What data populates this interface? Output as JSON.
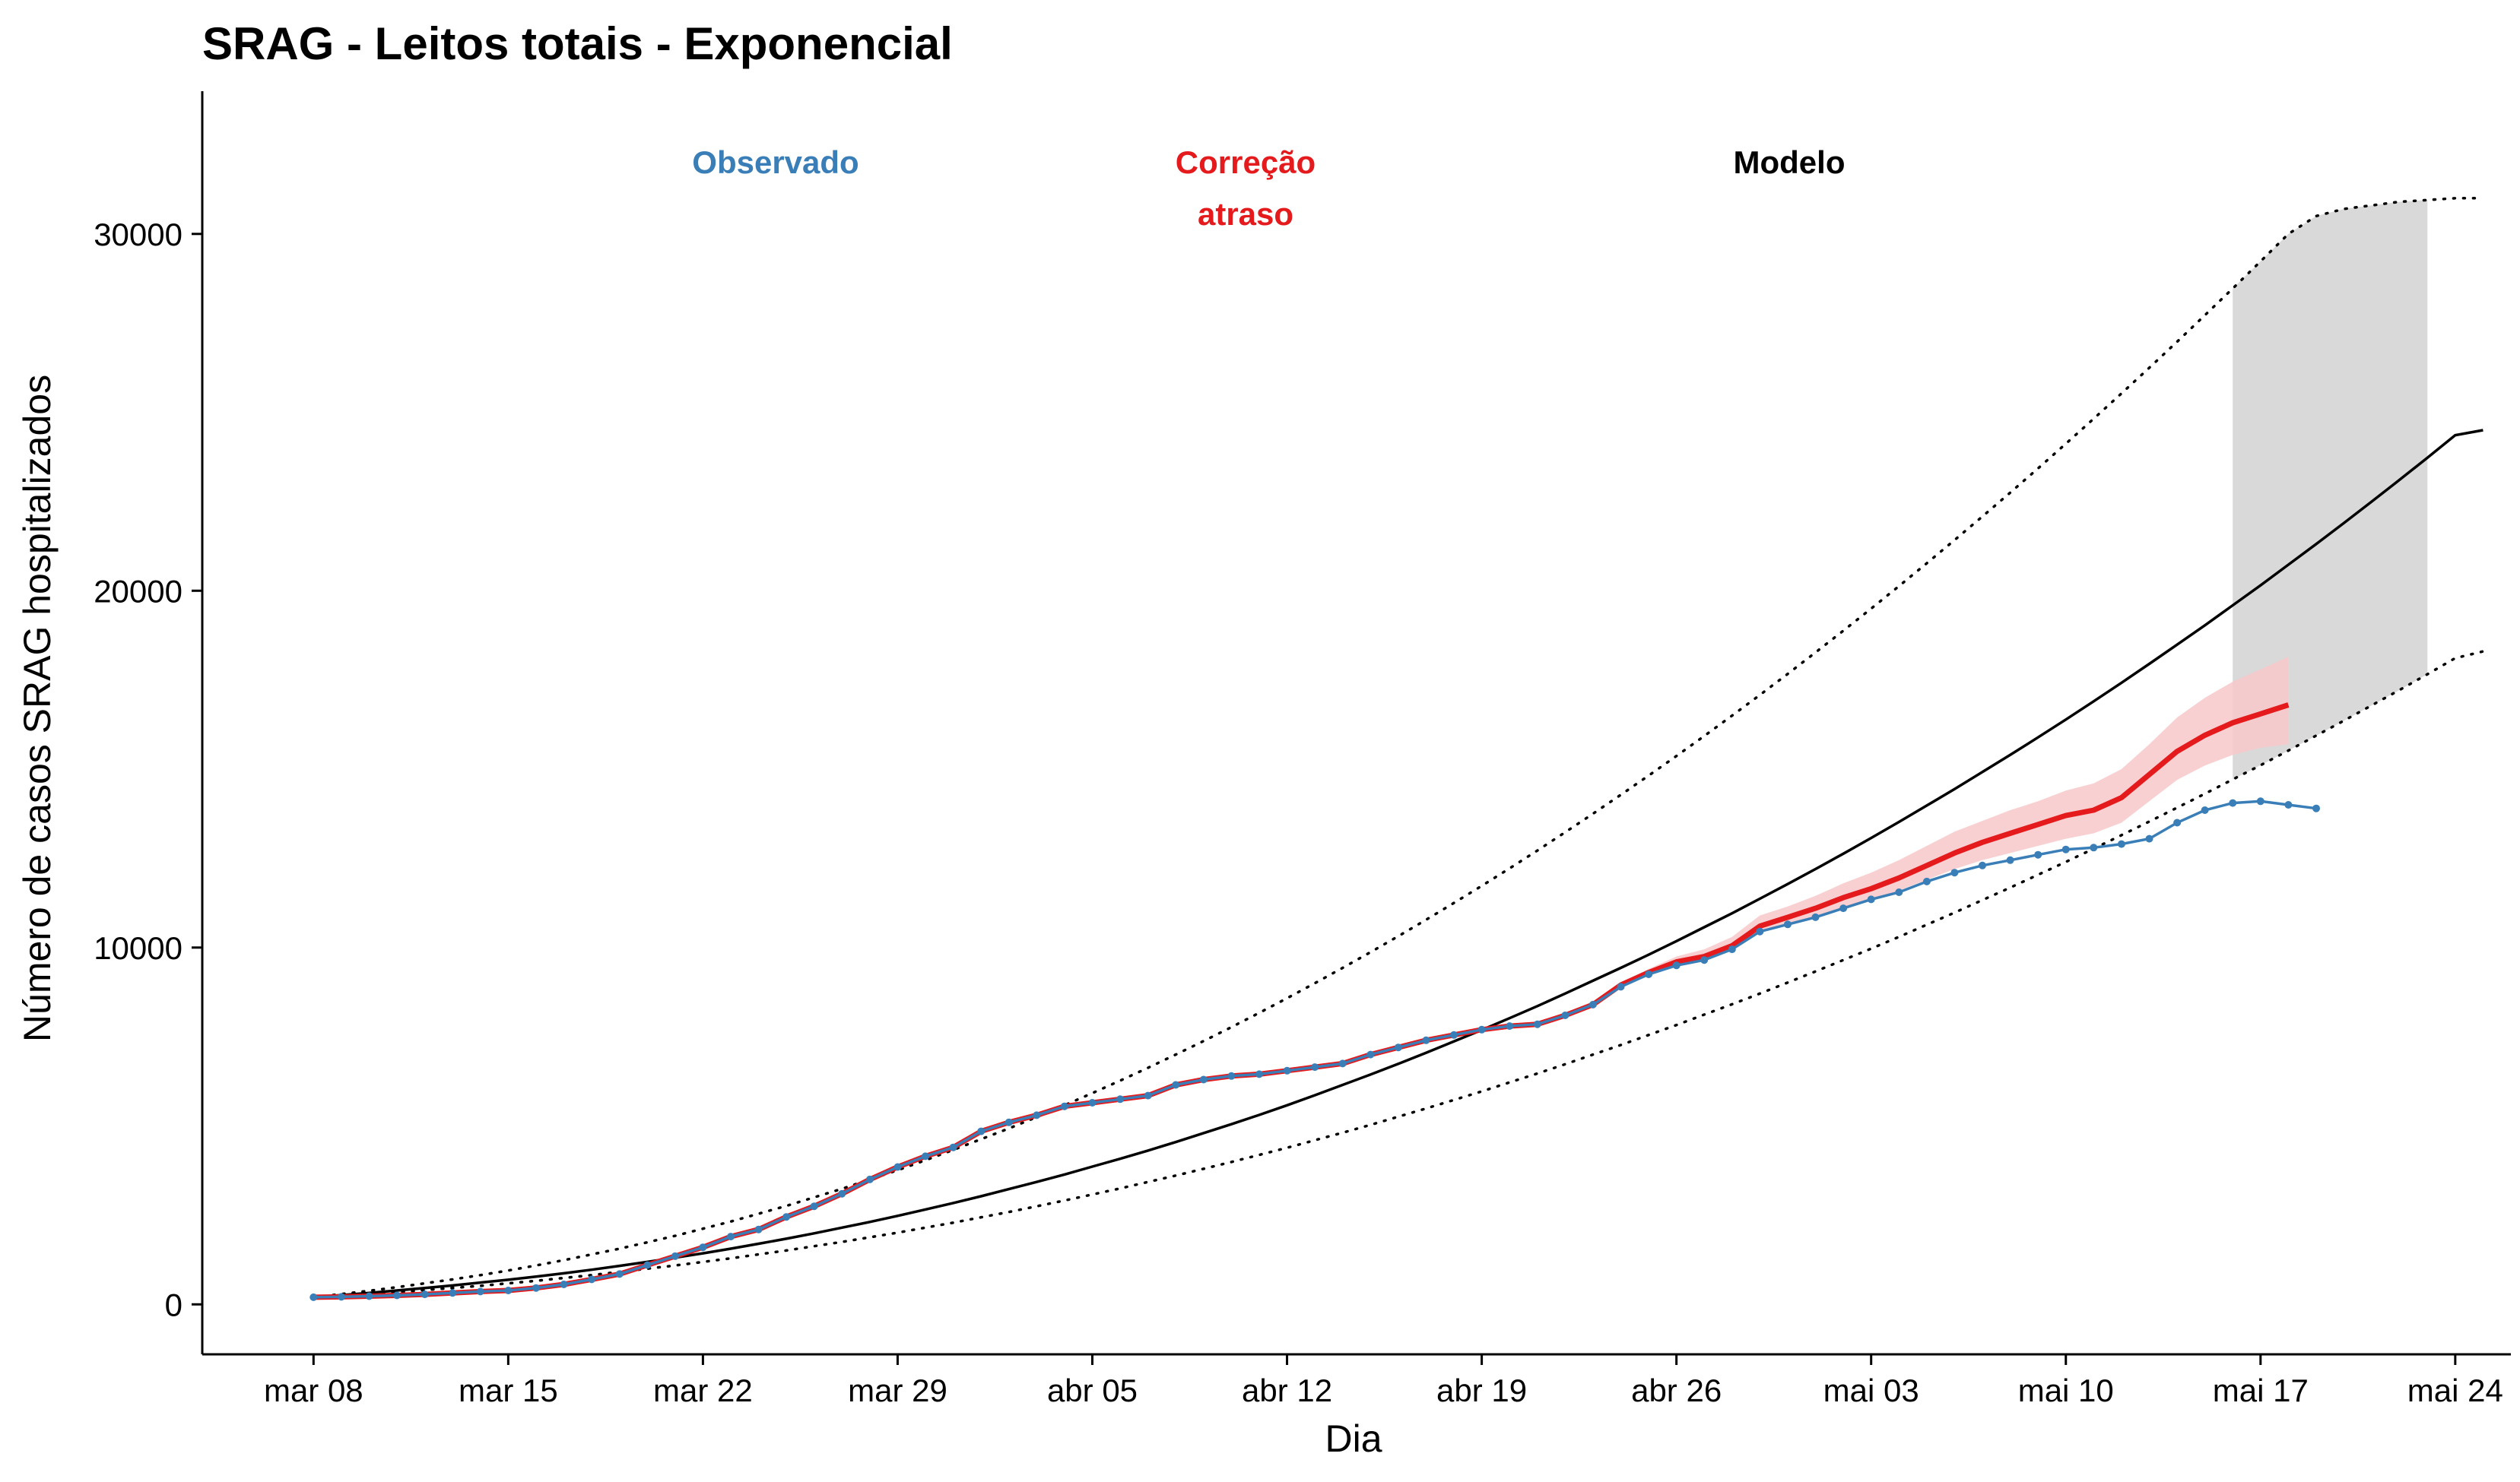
{
  "chart_data": {
    "type": "line",
    "title": "SRAG - Leitos totais - Exponencial",
    "xlabel": "Dia",
    "ylabel": "Número de casos SRAG hospitalizados",
    "x_range": [
      "2020-03-04",
      "2020-05-26"
    ],
    "ylim": [
      -1400,
      34000
    ],
    "x_ticks": [
      {
        "date": "2020-03-08",
        "label": "mar 08"
      },
      {
        "date": "2020-03-15",
        "label": "mar 15"
      },
      {
        "date": "2020-03-22",
        "label": "mar 22"
      },
      {
        "date": "2020-03-29",
        "label": "mar 29"
      },
      {
        "date": "2020-04-05",
        "label": "abr 05"
      },
      {
        "date": "2020-04-12",
        "label": "abr 12"
      },
      {
        "date": "2020-04-19",
        "label": "abr 19"
      },
      {
        "date": "2020-04-26",
        "label": "abr 26"
      },
      {
        "date": "2020-05-03",
        "label": "mai 03"
      },
      {
        "date": "2020-05-10",
        "label": "mai 10"
      },
      {
        "date": "2020-05-17",
        "label": "mai 17"
      },
      {
        "date": "2020-05-24",
        "label": "mai 24"
      }
    ],
    "y_ticks": [
      0,
      10000,
      20000,
      30000
    ],
    "grid": false,
    "legend": {
      "placement": "top",
      "entries": [
        {
          "key": "observado",
          "lines": [
            "Observado"
          ],
          "color": "#3A7EB8"
        },
        {
          "key": "correcao",
          "lines": [
            "Correção",
            "atraso"
          ],
          "color": "#E41A1C"
        },
        {
          "key": "modelo",
          "lines": [
            "Modelo"
          ],
          "color": "#000000"
        }
      ]
    },
    "colors": {
      "observado": "#3A7EB8",
      "correcao": "#E41A1C",
      "correcao_band": "#F8C8C9",
      "modelo": "#000000",
      "projection_band": "#D9D9D9"
    },
    "series": [
      {
        "name": "Observado",
        "start": "2020-03-08",
        "y": [
          200,
          210,
          230,
          250,
          280,
          320,
          360,
          390,
          460,
          560,
          700,
          850,
          1100,
          1350,
          1600,
          1900,
          2100,
          2450,
          2750,
          3100,
          3500,
          3850,
          4150,
          4400,
          4850,
          5100,
          5300,
          5550,
          5650,
          5750,
          5850,
          6150,
          6300,
          6400,
          6450,
          6550,
          6650,
          6750,
          7000,
          7200,
          7400,
          7550,
          7700,
          7800,
          7850,
          8100,
          8400,
          8900,
          9250,
          9500,
          9650,
          9950,
          10450,
          10650,
          10850,
          11100,
          11350,
          11550,
          11850,
          12100,
          12300,
          12450,
          12600,
          12750,
          12800,
          12900,
          13050,
          13500,
          13850,
          14050,
          14100,
          14000,
          13900
        ]
      },
      {
        "name": "Correção atraso",
        "start": "2020-03-08",
        "y": [
          200,
          210,
          230,
          250,
          280,
          320,
          360,
          390,
          460,
          560,
          700,
          850,
          1100,
          1350,
          1600,
          1900,
          2100,
          2450,
          2750,
          3100,
          3500,
          3850,
          4150,
          4400,
          4850,
          5100,
          5300,
          5550,
          5650,
          5750,
          5850,
          6150,
          6300,
          6400,
          6450,
          6550,
          6650,
          6750,
          7000,
          7200,
          7400,
          7550,
          7700,
          7800,
          7850,
          8100,
          8400,
          8950,
          9300,
          9600,
          9750,
          10050,
          10600,
          10850,
          11100,
          11400,
          11650,
          11950,
          12300,
          12650,
          12950,
          13200,
          13450,
          13700,
          13850,
          14200,
          14850,
          15500,
          15950,
          16300,
          16550,
          16800
        ],
        "lower": [
          200,
          210,
          230,
          250,
          280,
          320,
          360,
          390,
          460,
          560,
          700,
          850,
          1100,
          1350,
          1600,
          1900,
          2100,
          2450,
          2750,
          3100,
          3500,
          3850,
          4150,
          4400,
          4850,
          5100,
          5300,
          5550,
          5650,
          5750,
          5850,
          6150,
          6300,
          6400,
          6450,
          6550,
          6650,
          6750,
          7000,
          7200,
          7400,
          7550,
          7700,
          7800,
          7850,
          8100,
          8400,
          8900,
          9250,
          9500,
          9650,
          9950,
          10450,
          10650,
          10850,
          11100,
          11350,
          11600,
          11900,
          12200,
          12450,
          12650,
          12850,
          13050,
          13200,
          13500,
          14100,
          14700,
          15100,
          15400,
          15600,
          15700
        ],
        "upper": [
          200,
          210,
          230,
          250,
          280,
          320,
          360,
          390,
          460,
          560,
          700,
          850,
          1100,
          1350,
          1600,
          1900,
          2100,
          2450,
          2750,
          3100,
          3500,
          3850,
          4150,
          4400,
          4850,
          5100,
          5300,
          5550,
          5650,
          5750,
          5850,
          6150,
          6300,
          6400,
          6450,
          6550,
          6650,
          6750,
          7000,
          7200,
          7400,
          7550,
          7700,
          7800,
          7850,
          8100,
          8400,
          9000,
          9400,
          9750,
          9950,
          10300,
          10900,
          11150,
          11450,
          11800,
          12100,
          12450,
          12850,
          13250,
          13550,
          13850,
          14100,
          14400,
          14600,
          15000,
          15700,
          16450,
          17000,
          17450,
          17800,
          18150
        ]
      },
      {
        "name": "Modelo",
        "start": "2020-03-08",
        "y": [
          200,
          260,
          320,
          390,
          460,
          530,
          610,
          690,
          780,
          870,
          970,
          1080,
          1190,
          1310,
          1430,
          1560,
          1700,
          1840,
          1990,
          2150,
          2310,
          2480,
          2660,
          2840,
          3030,
          3230,
          3430,
          3640,
          3860,
          4080,
          4310,
          4550,
          4800,
          5050,
          5310,
          5580,
          5860,
          6150,
          6440,
          6740,
          7050,
          7370,
          7690,
          8020,
          8360,
          8710,
          9070,
          9430,
          9800,
          10180,
          10570,
          10960,
          11370,
          11780,
          12200,
          12630,
          13070,
          13520,
          13980,
          14440,
          14920,
          15400,
          15890,
          16390,
          16900,
          17420,
          17950,
          18490,
          19030,
          19590,
          20150,
          20730,
          21310,
          21900,
          22500,
          23110,
          23730,
          24360,
          24500
        ]
      },
      {
        "name": "Modelo inferior",
        "start": "2020-03-08",
        "y": [
          200,
          240,
          290,
          340,
          400,
          460,
          520,
          590,
          660,
          740,
          820,
          910,
          1000,
          1090,
          1190,
          1290,
          1400,
          1510,
          1630,
          1750,
          1880,
          2010,
          2150,
          2290,
          2440,
          2590,
          2750,
          2910,
          3080,
          3250,
          3430,
          3610,
          3800,
          3990,
          4190,
          4390,
          4600,
          4810,
          5030,
          5260,
          5490,
          5730,
          5970,
          6220,
          6470,
          6730,
          7000,
          7270,
          7550,
          7830,
          8120,
          8410,
          8710,
          9020,
          9330,
          9650,
          9970,
          10300,
          10640,
          10980,
          11330,
          11680,
          12040,
          12400,
          12770,
          13150,
          13530,
          13920,
          14310,
          14710,
          15110,
          15520,
          15940,
          16360,
          16790,
          17220,
          17660,
          18110,
          18300
        ]
      },
      {
        "name": "Modelo superior",
        "start": "2020-03-08",
        "y": [
          200,
          290,
          380,
          480,
          590,
          700,
          820,
          950,
          1090,
          1240,
          1400,
          1560,
          1740,
          1920,
          2120,
          2320,
          2540,
          2760,
          3000,
          3240,
          3500,
          3760,
          4040,
          4330,
          4630,
          4930,
          5250,
          5580,
          5920,
          6270,
          6630,
          7000,
          7380,
          7770,
          8170,
          8580,
          9000,
          9430,
          9870,
          10320,
          10780,
          11250,
          11730,
          12220,
          12720,
          13230,
          13750,
          14280,
          14820,
          15370,
          15930,
          16500,
          17080,
          17670,
          18270,
          18880,
          19500,
          20130,
          20770,
          21420,
          22080,
          22750,
          23430,
          24120,
          24820,
          25530,
          26250,
          26980,
          27720,
          28470,
          29230,
          30000,
          30500,
          30700,
          30800,
          30900,
          30950,
          31000,
          31000
        ]
      }
    ],
    "projection_band": {
      "start": "2020-05-16",
      "end": "2020-05-23"
    }
  }
}
